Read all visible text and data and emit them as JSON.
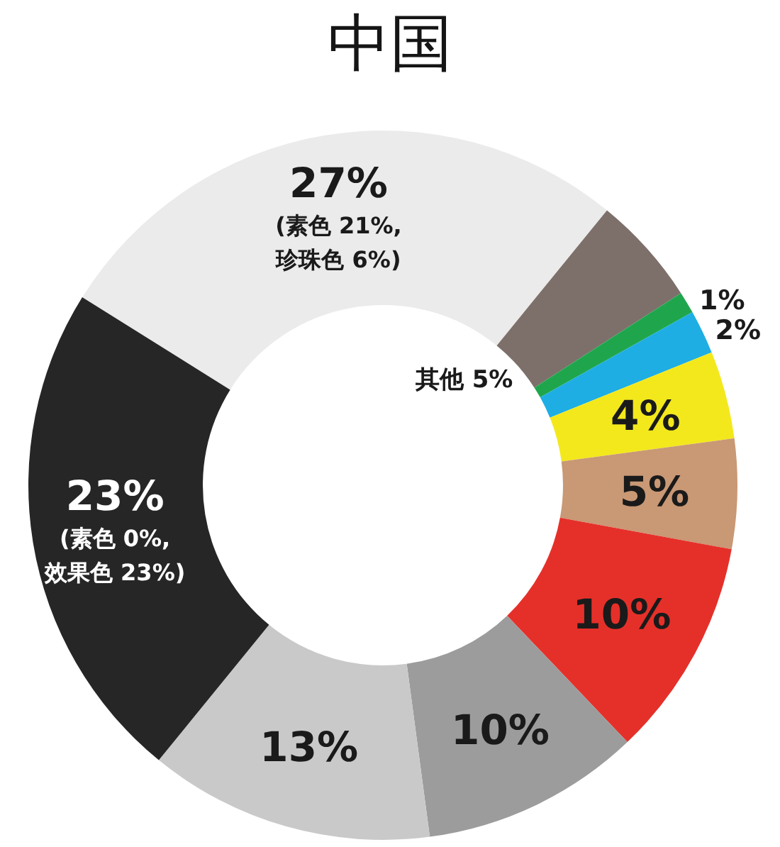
{
  "chart_data": {
    "type": "donut",
    "title": "中国",
    "categories": [
      null,
      "其他",
      null,
      null,
      null,
      null,
      null,
      null,
      null,
      null
    ],
    "values": [
      27,
      5,
      1,
      2,
      4,
      5,
      10,
      10,
      13,
      23
    ],
    "colors": [
      "#ebebeb",
      "#7d706a",
      "#1fa64d",
      "#1eaee3",
      "#f3e81c",
      "#c99874",
      "#e5302a",
      "#9c9c9c",
      "#c9c9c9",
      "#262626"
    ],
    "value_labels": [
      "27%\n(素色 21%,\n珍珠色 6%)",
      "5%",
      "1%",
      "2%",
      "4%",
      "5%",
      "10%",
      "10%",
      "13%",
      "23%\n(素色 0%,\n效果色 23%)"
    ]
  }
}
